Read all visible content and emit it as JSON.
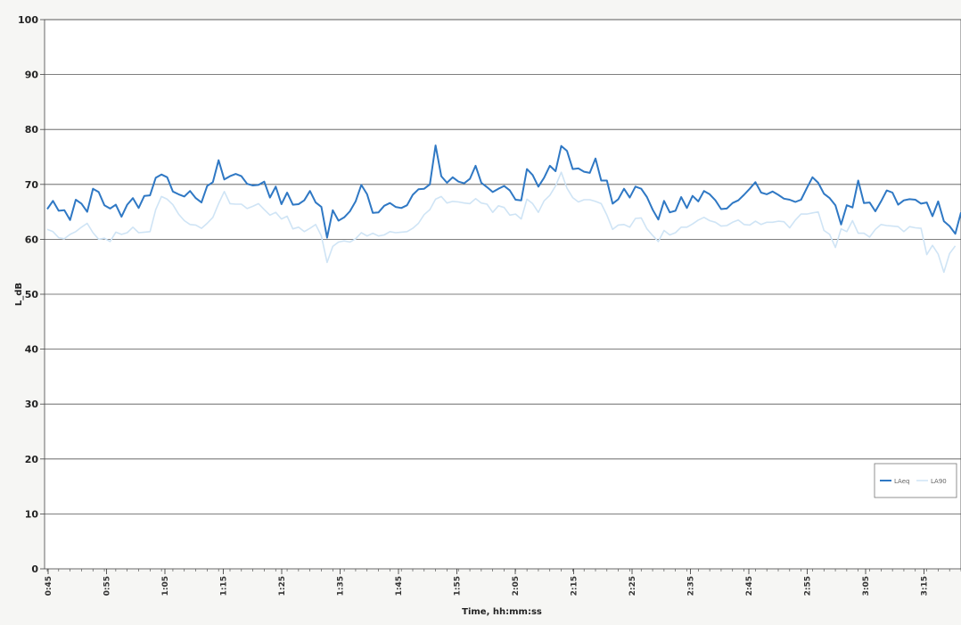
{
  "chart_data": {
    "type": "line",
    "title": "",
    "xlabel": "Time, hh:mm:ss",
    "ylabel": "L_dB",
    "ylim": [
      0,
      100
    ],
    "yticks": [
      0,
      10,
      20,
      30,
      40,
      50,
      60,
      70,
      80,
      90,
      100
    ],
    "xticks": [
      "0:45",
      "0:55",
      "1:05",
      "1:15",
      "1:25",
      "1:35",
      "1:45",
      "1:55",
      "2:05",
      "2:15",
      "2:25",
      "2:35",
      "2:45",
      "2:55",
      "3:05",
      "3:15"
    ],
    "grid": true,
    "legend_position": "bottom-right",
    "series": [
      {
        "name": "LAeq",
        "color": "#2f78c4",
        "values": [
          65.5,
          67,
          65.2,
          65.3,
          63.5,
          67.2,
          66.5,
          65,
          69.2,
          68.6,
          66.2,
          65.6,
          66.3,
          64.1,
          66.3,
          67.5,
          65.7,
          67.9,
          68,
          71.2,
          71.8,
          71.3,
          68.7,
          68.2,
          67.8,
          68.8,
          67.5,
          66.7,
          69.7,
          70.4,
          74.4,
          70.9,
          71.5,
          71.9,
          71.5,
          70.1,
          69.8,
          69.9,
          70.5,
          67.6,
          69.6,
          66.4,
          68.5,
          66.3,
          66.4,
          67.1,
          68.8,
          66.7,
          65.9,
          60.3,
          65.3,
          63.4,
          64,
          65.1,
          66.9,
          69.9,
          68.2,
          64.8,
          64.9,
          66.1,
          66.6,
          65.9,
          65.7,
          66.2,
          68.1,
          69.1,
          69.2,
          70,
          77.1,
          71.5,
          70.3,
          71.3,
          70.5,
          70.2,
          71,
          73.4,
          70.3,
          69.5,
          68.6,
          69.2,
          69.7,
          68.9,
          67.2,
          67.1,
          72.8,
          71.7,
          69.6,
          71.2,
          73.4,
          72.4,
          77,
          76.1,
          72.8,
          72.9,
          72.3,
          72.1,
          74.7,
          70.7,
          70.7,
          66.5,
          67.3,
          69.2,
          67.6,
          69.6,
          69.2,
          67.7,
          65.4,
          63.6,
          67,
          64.9,
          65.2,
          67.7,
          65.7,
          67.9,
          66.9,
          68.8,
          68.2,
          67.1,
          65.5,
          65.6,
          66.6,
          67.1,
          68.1,
          69.2,
          70.4,
          68.5,
          68.2,
          68.7,
          68.1,
          67.4,
          67.2,
          66.8,
          67.2,
          69.3,
          71.3,
          70.3,
          68.3,
          67.5,
          66.2,
          62.7,
          66.2,
          65.8,
          70.7,
          66.6,
          66.7,
          65.1,
          66.9,
          68.9,
          68.5,
          66.3,
          67.1,
          67.3,
          67.2,
          66.5,
          66.7,
          64.2,
          66.9,
          63.3,
          62.4,
          61,
          64.9
        ]
      },
      {
        "name": "LA90",
        "color": "#cfe4f5",
        "values": [
          61.8,
          61.4,
          60.3,
          60.1,
          60.9,
          61.4,
          62.2,
          62.9,
          61.2,
          60,
          60.2,
          59.6,
          61.3,
          60.9,
          61.2,
          62.2,
          61.2,
          61.3,
          61.4,
          65.4,
          67.8,
          67.3,
          66.3,
          64.6,
          63.4,
          62.7,
          62.6,
          62,
          62.9,
          64,
          66.5,
          68.7,
          66.5,
          66.4,
          66.4,
          65.6,
          66,
          66.5,
          65.4,
          64.4,
          64.9,
          63.7,
          64.2,
          61.9,
          62.2,
          61.4,
          62,
          62.7,
          60.6,
          55.8,
          58.7,
          59.5,
          59.7,
          59.5,
          60.1,
          61.2,
          60.6,
          61.1,
          60.6,
          60.8,
          61.4,
          61.2,
          61.3,
          61.4,
          62,
          62.9,
          64.5,
          65.4,
          67.3,
          67.8,
          66.6,
          66.9,
          66.8,
          66.6,
          66.5,
          67.4,
          66.6,
          66.4,
          64.9,
          66.1,
          65.8,
          64.4,
          64.6,
          63.7,
          67.3,
          66.5,
          64.9,
          67,
          68,
          69.7,
          72.2,
          69.3,
          67.6,
          66.8,
          67.2,
          67.2,
          66.9,
          66.5,
          64.4,
          61.8,
          62.6,
          62.7,
          62.2,
          63.8,
          63.9,
          61.9,
          60.7,
          59.6,
          61.6,
          60.8,
          61.2,
          62.2,
          62.2,
          62.8,
          63.5,
          64,
          63.4,
          63.1,
          62.4,
          62.5,
          63.1,
          63.5,
          62.7,
          62.6,
          63.3,
          62.7,
          63.1,
          63.1,
          63.3,
          63.2,
          62.1,
          63.5,
          64.6,
          64.6,
          64.8,
          65,
          61.6,
          60.9,
          58.5,
          61.9,
          61.4,
          63.4,
          61.1,
          61.1,
          60.4,
          61.8,
          62.7,
          62.5,
          62.4,
          62.3,
          61.4,
          62.3,
          62.1,
          62,
          57.2,
          58.9,
          57.3,
          54,
          57.4,
          58.8
        ]
      }
    ]
  }
}
